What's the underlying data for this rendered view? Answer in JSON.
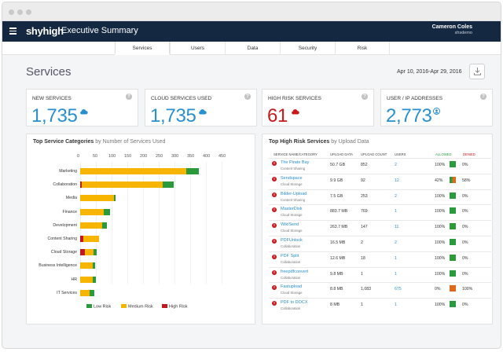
{
  "header": {
    "logo_text": "shyhigh",
    "app_title": "Executive Summary",
    "user_name": "Cameron Coles",
    "user_org": "shsdemo"
  },
  "tabs": [
    {
      "label": "Services",
      "active": true
    },
    {
      "label": "Users",
      "active": false
    },
    {
      "label": "Data",
      "active": false
    },
    {
      "label": "Security",
      "active": false
    },
    {
      "label": "Risk",
      "active": false
    }
  ],
  "page": {
    "title": "Services",
    "date_range": "Apr 10, 2016-Apr 29, 2016",
    "download_icon": "download-icon"
  },
  "stats": [
    {
      "label": "NEW SERVICES",
      "value": "1,735",
      "icon": "cloud-icon",
      "color": "#2a8fcf",
      "help": "?"
    },
    {
      "label": "CLOUD SERVICES USED",
      "value": "1,735",
      "icon": "cloud-icon",
      "color": "#2a8fcf",
      "help": "?"
    },
    {
      "label": "HIGH RISK SERVICES",
      "value": "61",
      "icon": "cloud-icon",
      "color": "#c8191c",
      "help": "?"
    },
    {
      "label": "USER / IP ADDRESSES",
      "value": "2,773",
      "icon": "user-icon",
      "color": "#2a8fcf",
      "help": "?"
    }
  ],
  "categories_panel": {
    "title": "Top Service Categories",
    "subtitle": "by Number of Services Used"
  },
  "chart_data": {
    "type": "bar",
    "orientation": "horizontal",
    "stacked": true,
    "title": "Top Service Categories by Number of Services Used",
    "xlim": [
      0,
      450
    ],
    "x_ticks": [
      "0",
      "50",
      "100",
      "150",
      "200",
      "250",
      "300",
      "350",
      "400",
      "450"
    ],
    "grid": true,
    "legend_position": "bottom",
    "categories": [
      "Marketing",
      "Collaboration",
      "Media",
      "Finance",
      "Development",
      "Content Sharing",
      "Cloud Storage",
      "Business Intelligence",
      "HR",
      "IT Services"
    ],
    "series": [
      {
        "name": "High Risk",
        "color": "#c0181b",
        "values": [
          0,
          5,
          0,
          0,
          0,
          10,
          15,
          0,
          0,
          0
        ]
      },
      {
        "name": "Medium Risk",
        "color": "#f7b500",
        "values": [
          338,
          258,
          108,
          75,
          70,
          50,
          28,
          40,
          40,
          30
        ]
      },
      {
        "name": "Low Risk",
        "color": "#2a9a3c",
        "values": [
          40,
          35,
          5,
          20,
          15,
          0,
          10,
          8,
          10,
          15
        ]
      }
    ],
    "legend_order": [
      "Low Risk",
      "Medium Risk",
      "High Risk"
    ]
  },
  "risk_table": {
    "title": "Top High Risk Services",
    "subtitle": "by Upload Data",
    "columns": [
      "SERVICE NAME/CATEGORY",
      "UPLOAD DATA",
      "UPLOAD COUNT",
      "USERS",
      "ALLOWED",
      "DENIED"
    ],
    "allowed_color": "#2a9a3c",
    "denied_color": "#e06a1a",
    "rows": [
      {
        "name": "The Pirate Bay",
        "category": "Content Sharing",
        "upload_data": "50.7 GB",
        "upload_count": "852",
        "users": "2",
        "allowed": "100%",
        "denied": "0%",
        "allowed_frac": 1.0
      },
      {
        "name": "Sendspace",
        "category": "Cloud Storage",
        "upload_data": "9.9 GB",
        "upload_count": "92",
        "users": "12",
        "allowed": "42%",
        "denied": "58%",
        "allowed_frac": 0.42
      },
      {
        "name": "Bilder-Upload",
        "category": "Content Sharing",
        "upload_data": "7.5 GB",
        "upload_count": "253",
        "users": "2",
        "allowed": "100%",
        "denied": "0%",
        "allowed_frac": 1.0
      },
      {
        "name": "MasterDisk",
        "category": "Cloud Storage",
        "upload_data": "883.7 MB",
        "upload_count": "769",
        "users": "1",
        "allowed": "100%",
        "denied": "0%",
        "allowed_frac": 1.0
      },
      {
        "name": "WikiSend",
        "category": "Cloud Storage",
        "upload_data": "263.7 MB",
        "upload_count": "147",
        "users": "11",
        "allowed": "100%",
        "denied": "0%",
        "allowed_frac": 1.0
      },
      {
        "name": "PDFUnlock",
        "category": "Collaboration",
        "upload_data": "16.5 MB",
        "upload_count": "2",
        "users": "2",
        "allowed": "100%",
        "denied": "0%",
        "allowed_frac": 1.0
      },
      {
        "name": "PDF Split",
        "category": "Collaboration",
        "upload_data": "12.6 MB",
        "upload_count": "18",
        "users": "1",
        "allowed": "100%",
        "denied": "0%",
        "allowed_frac": 1.0
      },
      {
        "name": "freepdfconvert",
        "category": "Collaboration",
        "upload_data": "9.8 MB",
        "upload_count": "1",
        "users": "1",
        "allowed": "100%",
        "denied": "0%",
        "allowed_frac": 1.0
      },
      {
        "name": "Fastupload",
        "category": "Cloud Storage",
        "upload_data": "8.8 MB",
        "upload_count": "1,083",
        "users": "675",
        "allowed": "0%",
        "denied": "100%",
        "allowed_frac": 0.0
      },
      {
        "name": "PDF to DOCX",
        "category": "Collaboration",
        "upload_data": "8 MB",
        "upload_count": "1",
        "users": "1",
        "allowed": "100%",
        "denied": "0%",
        "allowed_frac": 1.0
      }
    ]
  }
}
